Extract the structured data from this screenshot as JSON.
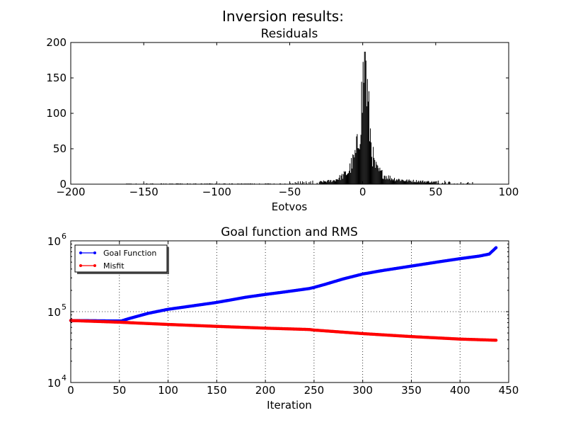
{
  "figure": {
    "title": "Inversion results:"
  },
  "chart_data": [
    {
      "type": "bar",
      "title": "Residuals",
      "xlabel": "Eotvos",
      "ylabel": "",
      "xlim": [
        -200,
        100
      ],
      "ylim": [
        0,
        200
      ],
      "xticks": [
        -200,
        -150,
        -100,
        -50,
        0,
        50,
        100
      ],
      "xtick_labels": [
        "−200",
        "−150",
        "−100",
        "−50",
        "0",
        "50",
        "100"
      ],
      "yticks": [
        0,
        50,
        100,
        150,
        200
      ],
      "ytick_labels": [
        "0",
        "50",
        "100",
        "150",
        "200"
      ],
      "grid": false,
      "bar_color": "#000000",
      "bin_width": 0.5,
      "x_range_of_data": [
        -162,
        82
      ],
      "histogram_profile": [
        {
          "x": -60,
          "y": 1
        },
        {
          "x": -40,
          "y": 2
        },
        {
          "x": -30,
          "y": 3
        },
        {
          "x": -20,
          "y": 5
        },
        {
          "x": -15,
          "y": 10
        },
        {
          "x": -10,
          "y": 17
        },
        {
          "x": -7,
          "y": 30
        },
        {
          "x": -5,
          "y": 40
        },
        {
          "x": -3,
          "y": 60
        },
        {
          "x": -2,
          "y": 85
        },
        {
          "x": -1,
          "y": 110
        },
        {
          "x": 0,
          "y": 128
        },
        {
          "x": 0.5,
          "y": 160
        },
        {
          "x": 1,
          "y": 165
        },
        {
          "x": 1.5,
          "y": 187
        },
        {
          "x": 2,
          "y": 160
        },
        {
          "x": 3,
          "y": 130
        },
        {
          "x": 4,
          "y": 100
        },
        {
          "x": 5,
          "y": 75
        },
        {
          "x": 6,
          "y": 55
        },
        {
          "x": 7,
          "y": 40
        },
        {
          "x": 8,
          "y": 28
        },
        {
          "x": 10,
          "y": 20
        },
        {
          "x": 15,
          "y": 12
        },
        {
          "x": 20,
          "y": 8
        },
        {
          "x": 30,
          "y": 5
        },
        {
          "x": 50,
          "y": 3
        },
        {
          "x": 70,
          "y": 2
        }
      ],
      "peak": {
        "x": 1.5,
        "y": 187
      }
    },
    {
      "type": "line",
      "title": "Goal function and RMS",
      "xlabel": "Iteration",
      "ylabel": "",
      "xlim": [
        0,
        450
      ],
      "ylim": [
        10000,
        1000000
      ],
      "yscale": "log",
      "xticks": [
        0,
        50,
        100,
        150,
        200,
        250,
        300,
        350,
        400,
        450
      ],
      "xtick_labels": [
        "0",
        "50",
        "100",
        "150",
        "200",
        "250",
        "300",
        "350",
        "400",
        "450"
      ],
      "yticks": [
        {
          "value": 10000,
          "base": "10",
          "exp": "4"
        },
        {
          "value": 100000,
          "base": "10",
          "exp": "5"
        },
        {
          "value": 1000000,
          "base": "10",
          "exp": "6"
        }
      ],
      "grid": true,
      "legend": "top-left",
      "series": [
        {
          "name": "Goal Function",
          "color": "#0000ff",
          "points": [
            [
              0,
              75000
            ],
            [
              20,
              74500
            ],
            [
              40,
              74000
            ],
            [
              52,
              74000
            ],
            [
              60,
              80000
            ],
            [
              80,
              95000
            ],
            [
              100,
              108000
            ],
            [
              120,
              118000
            ],
            [
              150,
              135000
            ],
            [
              180,
              160000
            ],
            [
              200,
              175000
            ],
            [
              220,
              190000
            ],
            [
              245,
              212000
            ],
            [
              250,
              220000
            ],
            [
              260,
              240000
            ],
            [
              280,
              290000
            ],
            [
              300,
              340000
            ],
            [
              320,
              380000
            ],
            [
              350,
              440000
            ],
            [
              380,
              510000
            ],
            [
              400,
              560000
            ],
            [
              420,
              610000
            ],
            [
              430,
              650000
            ],
            [
              437,
              800000
            ]
          ]
        },
        {
          "name": "Misfit",
          "color": "#ff0000",
          "points": [
            [
              0,
              75000
            ],
            [
              50,
              71000
            ],
            [
              100,
              66000
            ],
            [
              150,
              62000
            ],
            [
              200,
              58500
            ],
            [
              245,
              56000
            ],
            [
              250,
              55000
            ],
            [
              300,
              49000
            ],
            [
              350,
              44500
            ],
            [
              400,
              41000
            ],
            [
              437,
              39500
            ]
          ]
        }
      ]
    }
  ]
}
